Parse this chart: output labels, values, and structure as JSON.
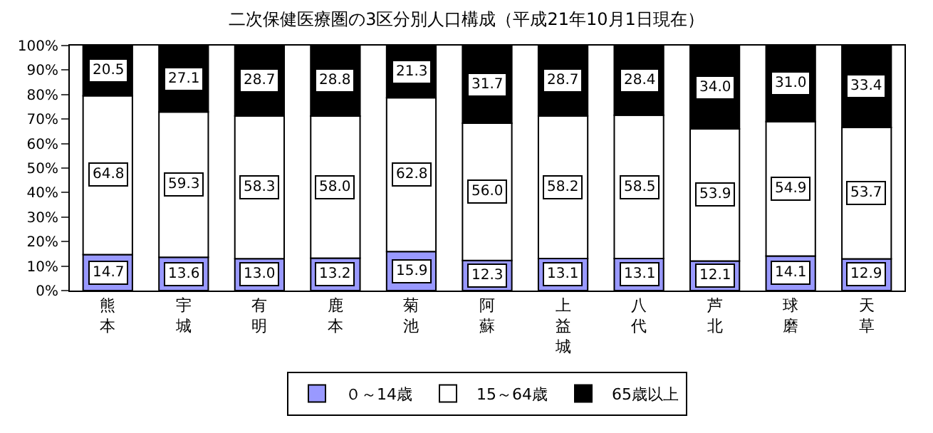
{
  "chart_data": {
    "type": "bar",
    "title": "二次保健医療圏の3区分別人口構成（平成21年10月1日現在）",
    "categories": [
      "熊本",
      "宇城",
      "有明",
      "鹿本",
      "菊池",
      "阿蘇",
      "上益城",
      "八代",
      "芦北",
      "球磨",
      "天草"
    ],
    "stacked": true,
    "legend": "bottom",
    "ylim": [
      0,
      100
    ],
    "yticks": [
      {
        "value": 0,
        "label": "0%"
      },
      {
        "value": 10,
        "label": "10%"
      },
      {
        "value": 20,
        "label": "20%"
      },
      {
        "value": 30,
        "label": "30%"
      },
      {
        "value": 40,
        "label": "40%"
      },
      {
        "value": 50,
        "label": "50%"
      },
      {
        "value": 60,
        "label": "60%"
      },
      {
        "value": 70,
        "label": "70%"
      },
      {
        "value": 80,
        "label": "80%"
      },
      {
        "value": 90,
        "label": "90%"
      },
      {
        "value": 100,
        "label": "100%"
      }
    ],
    "series": [
      {
        "name": "０～14歳",
        "color": "#9999ff",
        "values": [
          14.7,
          13.6,
          13.0,
          13.2,
          15.9,
          12.3,
          13.1,
          13.1,
          12.1,
          14.1,
          12.9
        ],
        "value_labels": [
          "14.7",
          "13.6",
          "13.0",
          "13.2",
          "15.9",
          "12.3",
          "13.1",
          "13.1",
          "12.1",
          "14.1",
          "12.9"
        ]
      },
      {
        "name": "15～64歳",
        "color": "#ffffff",
        "values": [
          64.8,
          59.3,
          58.3,
          58.0,
          62.8,
          56.0,
          58.2,
          58.5,
          53.9,
          54.9,
          53.7
        ],
        "value_labels": [
          "64.8",
          "59.3",
          "58.3",
          "58.0",
          "62.8",
          "56.0",
          "58.2",
          "58.5",
          "53.9",
          "54.9",
          "53.7"
        ]
      },
      {
        "name": "65歳以上",
        "color": "#000000",
        "values": [
          20.5,
          27.1,
          28.7,
          28.8,
          21.3,
          31.7,
          28.7,
          28.4,
          34.0,
          31.0,
          33.4
        ],
        "value_labels": [
          "20.5",
          "27.1",
          "28.7",
          "28.8",
          "21.3",
          "31.7",
          "28.7",
          "28.4",
          "34.0",
          "31.0",
          "33.4"
        ]
      }
    ]
  }
}
